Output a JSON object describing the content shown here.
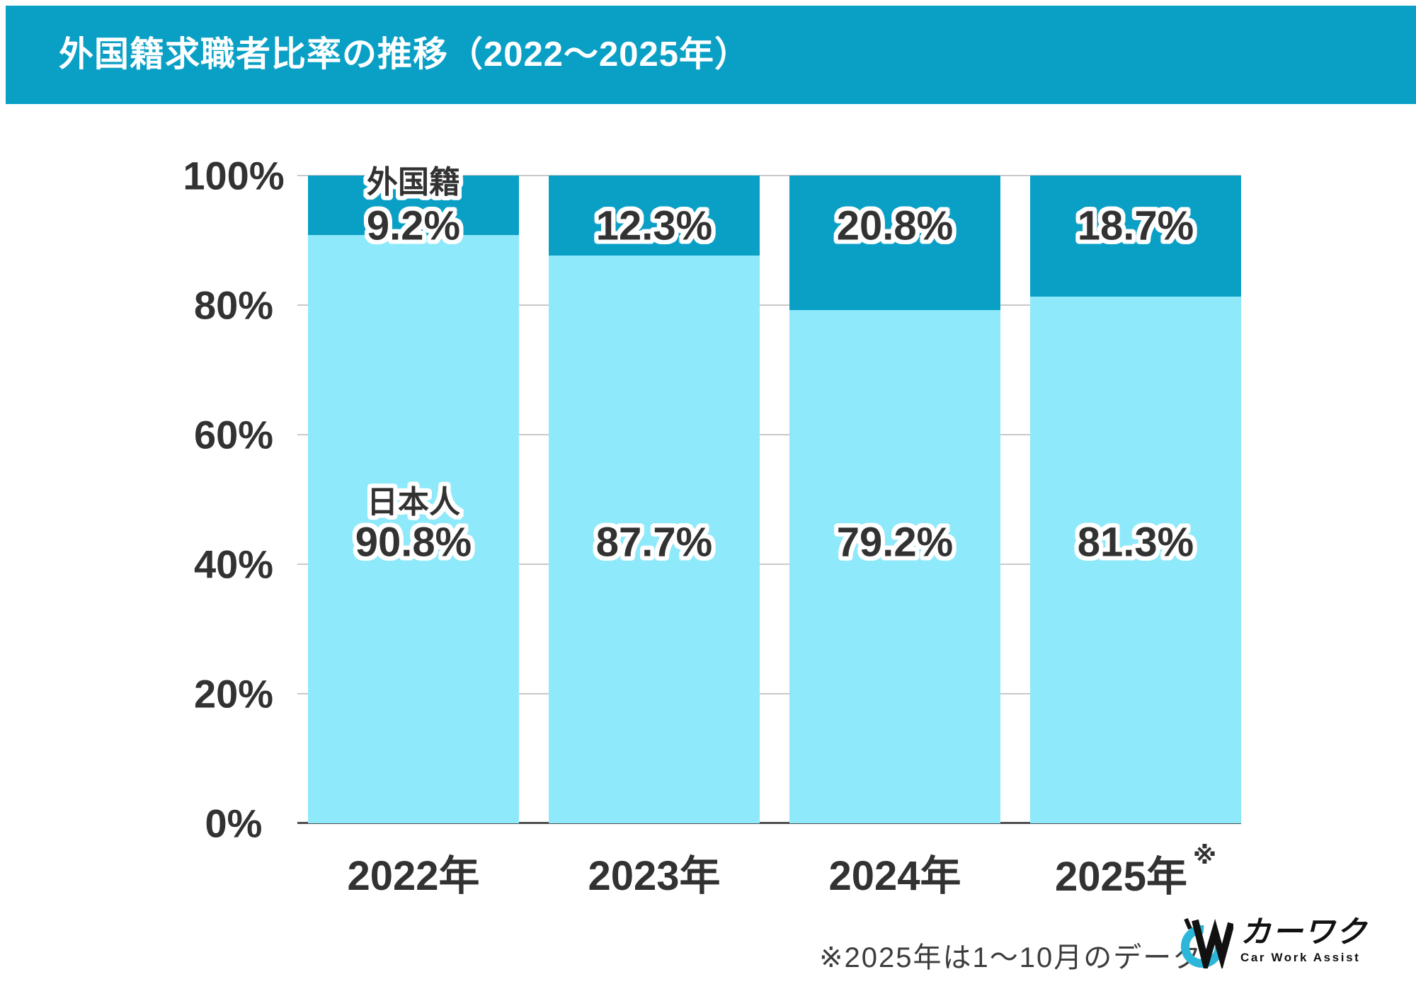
{
  "header": {
    "title": "外国籍求職者比率の推移（2022～2025年）"
  },
  "chart_data": {
    "type": "bar",
    "stacked": true,
    "unit": "%",
    "categories": [
      "2022年",
      "2023年",
      "2024年",
      "2025年"
    ],
    "series": [
      {
        "name": "日本人",
        "color": "#8ee9fb",
        "values": [
          90.8,
          87.7,
          79.2,
          81.3
        ]
      },
      {
        "name": "外国籍",
        "color": "#0aa0c6",
        "values": [
          9.2,
          12.3,
          20.8,
          18.7
        ]
      }
    ],
    "series_name_shown_on_first_bar_only": true,
    "y_axis": {
      "min": 0,
      "max": 100,
      "tick_step": 20,
      "tick_labels": [
        "0%",
        "20%",
        "40%",
        "60%",
        "80%",
        "100%"
      ],
      "grid": true
    },
    "category_note": {
      "marker": "※",
      "category_index": 3
    },
    "title": "外国籍求職者比率の推移（2022～2025年）",
    "xlabel": "",
    "ylabel": "",
    "legend_position": "inside-first-bar"
  },
  "footnote": {
    "text": "※2025年は1～10月のデータ"
  },
  "logo": {
    "brand": "カーワク",
    "subtitle": "Car Work Assist"
  },
  "colors": {
    "header_bg": "#0aa0c6",
    "header_text": "#ffffff",
    "bar_dark": "#0aa0c6",
    "bar_light": "#8ee9fb",
    "gridline": "#c9c9c9",
    "axis_line": "#4d4d4d",
    "text": "#323232",
    "logo_cyan": "#2cb7da",
    "logo_black": "#111111"
  }
}
